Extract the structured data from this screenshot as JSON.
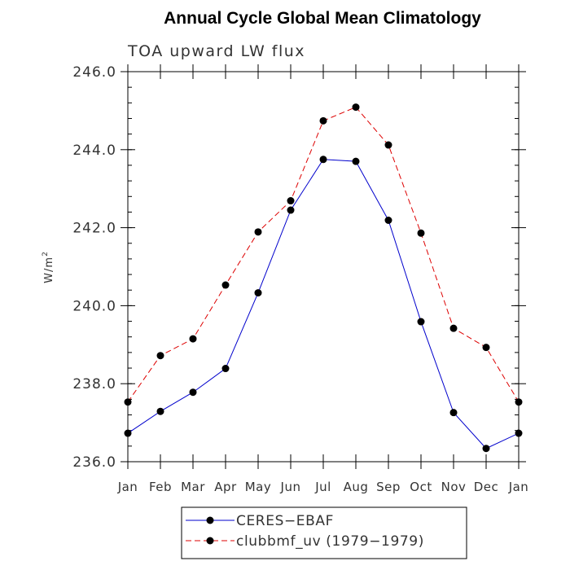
{
  "chart_data": {
    "type": "line",
    "title": "Annual Cycle Global Mean Climatology",
    "subtitle": "TOA upward LW flux",
    "ylabel": "W/m",
    "ylabel_superscript": "2",
    "ylim": [
      236.0,
      246.0
    ],
    "y_ticks": [
      "236.0",
      "238.0",
      "240.0",
      "242.0",
      "244.0",
      "246.0"
    ],
    "categories": [
      "Jan",
      "Feb",
      "Mar",
      "Apr",
      "May",
      "Jun",
      "Jul",
      "Aug",
      "Sep",
      "Oct",
      "Nov",
      "Dec",
      "Jan"
    ],
    "series": [
      {
        "name": "CERES−EBAF",
        "color": "#0000cc",
        "line_style": "solid",
        "values": [
          236.73,
          237.29,
          237.78,
          238.39,
          240.33,
          242.45,
          243.75,
          243.7,
          242.19,
          239.59,
          237.26,
          236.34,
          236.73
        ]
      },
      {
        "name": "clubbmf_uv (1979−1979)",
        "color": "#dd0000",
        "line_style": "dashed",
        "values": [
          237.53,
          238.72,
          239.15,
          240.53,
          241.89,
          242.69,
          244.74,
          245.09,
          244.12,
          241.86,
          239.42,
          238.93,
          237.53
        ]
      }
    ],
    "legend_position": "bottom"
  }
}
